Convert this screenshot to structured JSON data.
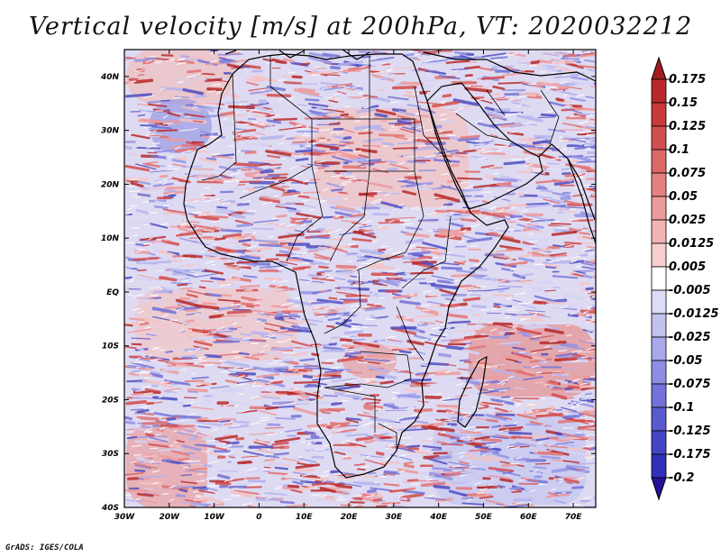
{
  "title": "Vertical velocity [m/s] at 200hPa, VT: 2020032212",
  "footer": "GrADS: IGES/COLA",
  "map": {
    "lat_labels": [
      "40N",
      "30N",
      "20N",
      "10N",
      "EQ",
      "10S",
      "20S",
      "30S",
      "40S"
    ],
    "lat_values": [
      40,
      30,
      20,
      10,
      0,
      -10,
      -20,
      -30,
      -40
    ],
    "lon_labels": [
      "30W",
      "20W",
      "10W",
      "0",
      "10E",
      "20E",
      "30E",
      "40E",
      "50E",
      "60E",
      "70E"
    ],
    "lon_values": [
      -30,
      -20,
      -10,
      0,
      10,
      20,
      30,
      40,
      50,
      60,
      70
    ],
    "lat_range": [
      -40,
      45
    ],
    "lon_range": [
      -30,
      75
    ]
  },
  "colorbar": {
    "labels": [
      "0.175",
      "0.15",
      "0.125",
      "0.1",
      "0.075",
      "0.05",
      "0.025",
      "0.0125",
      "0.005",
      "-0.005",
      "-0.0125",
      "-0.025",
      "-0.05",
      "-0.075",
      "-0.1",
      "-0.125",
      "-0.175",
      "-0.2"
    ],
    "top_color": "#a51c20",
    "bottom_color": "#2a0f9a",
    "colors": [
      "#b8282a",
      "#c83a3a",
      "#d24f4f",
      "#dc6767",
      "#e58080",
      "#ec9a9a",
      "#f2b4b4",
      "#f7cfcf",
      "#ffffff",
      "#dcdcf6",
      "#c2c2f0",
      "#a8a8ea",
      "#8e8ee4",
      "#7272da",
      "#5a5ad0",
      "#4444c6",
      "#3030b8"
    ]
  },
  "field_palette": {
    "red": [
      "#f6c3c3",
      "#ee9a9a",
      "#e27373",
      "#d44c4c",
      "#b82a2a"
    ],
    "blue": [
      "#d4d4f6",
      "#b4b4ee",
      "#9494e4",
      "#7373d6",
      "#4e4ec2"
    ],
    "neutral": "#ffffff"
  }
}
